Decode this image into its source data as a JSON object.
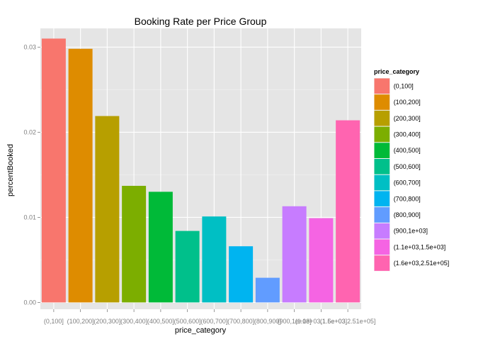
{
  "chart_data": {
    "type": "bar",
    "title": "Booking Rate per Price Group",
    "xlabel": "price_category",
    "ylabel": "percentBooked",
    "ylim": [
      -0.0008,
      0.0322
    ],
    "yticks": [
      0.0,
      0.01,
      0.02,
      0.03
    ],
    "ytick_labels": [
      "0.00",
      "0.01",
      "0.02",
      "0.03"
    ],
    "grid": true,
    "legend_position": "right",
    "legend_title": "price_category",
    "categories": [
      "(0,100]",
      "(100,200]",
      "(200,300]",
      "(300,400]",
      "(400,500]",
      "(500,600]",
      "(600,700]",
      "(700,800]",
      "(800,900]",
      "(900,1e+03]",
      "(1.1e+03,1.5e+03]",
      "(1.6e+03,2.51e+05]"
    ],
    "values": [
      0.031,
      0.0298,
      0.0219,
      0.0137,
      0.013,
      0.0084,
      0.0101,
      0.0066,
      0.0029,
      0.0113,
      0.0099,
      0.0214
    ],
    "colors": [
      "#F8766D",
      "#DE8C00",
      "#B79F00",
      "#7CAE00",
      "#00BA38",
      "#00C08B",
      "#00BFC4",
      "#00B4F0",
      "#619CFF",
      "#C77CFF",
      "#F564E3",
      "#FF64B0"
    ]
  }
}
